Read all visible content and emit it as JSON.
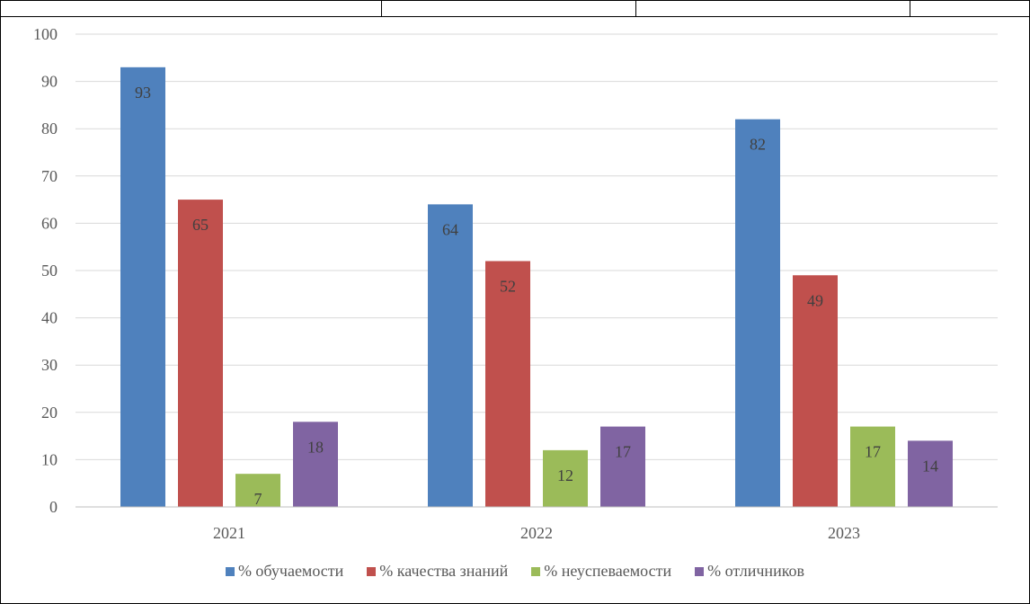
{
  "chart_data": {
    "type": "bar",
    "categories": [
      "2021",
      "2022",
      "2023"
    ],
    "series": [
      {
        "name": "% обучаемости",
        "values": [
          93,
          64,
          82
        ],
        "color": "#4F81BD"
      },
      {
        "name": "% качества знаний",
        "values": [
          65,
          52,
          49
        ],
        "color": "#C0504D"
      },
      {
        "name": "% неуспеваемости",
        "values": [
          7,
          12,
          17
        ],
        "color": "#9BBB59"
      },
      {
        "name": "% отличников",
        "values": [
          18,
          17,
          14
        ],
        "color": "#8064A2"
      }
    ],
    "title": "",
    "xlabel": "",
    "ylabel": "",
    "ylim": [
      0,
      100
    ],
    "yticks": [
      0,
      10,
      20,
      30,
      40,
      50,
      60,
      70,
      80,
      90,
      100
    ],
    "grid": true,
    "legend_position": "bottom"
  }
}
